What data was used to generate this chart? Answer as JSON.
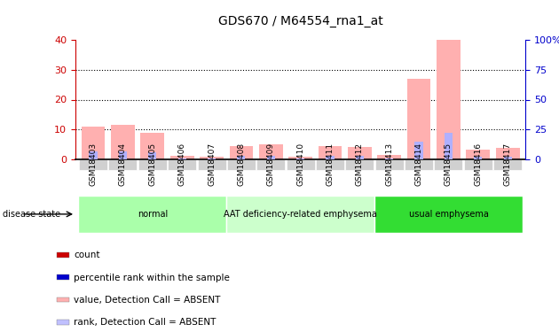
{
  "title": "GDS670 / M64554_rna1_at",
  "samples": [
    "GSM18403",
    "GSM18404",
    "GSM18405",
    "GSM18406",
    "GSM18407",
    "GSM18408",
    "GSM18409",
    "GSM18410",
    "GSM18411",
    "GSM18412",
    "GSM18413",
    "GSM18414",
    "GSM18415",
    "GSM18416",
    "GSM18417"
  ],
  "pink_bars": [
    11.0,
    11.5,
    8.8,
    1.1,
    0.8,
    4.5,
    5.0,
    1.0,
    4.5,
    4.2,
    1.5,
    27.0,
    40.0,
    3.2,
    4.0
  ],
  "blue_bars": [
    2.8,
    2.8,
    2.5,
    0.3,
    0.2,
    1.2,
    1.3,
    0.3,
    1.2,
    1.1,
    0.4,
    6.0,
    9.0,
    0.8,
    1.0
  ],
  "ylim_left": [
    0,
    40
  ],
  "ylim_right": [
    0,
    100
  ],
  "yticks_left": [
    0,
    10,
    20,
    30,
    40
  ],
  "yticks_right": [
    0,
    25,
    50,
    75,
    100
  ],
  "ytick_labels_right": [
    "0",
    "25",
    "50",
    "75",
    "100%"
  ],
  "groups": [
    {
      "label": "normal",
      "start": 0,
      "end": 5,
      "color": "#aaffaa"
    },
    {
      "label": "AAT deficiency-related emphysema",
      "start": 5,
      "end": 10,
      "color": "#ccffcc"
    },
    {
      "label": "usual emphysema",
      "start": 10,
      "end": 15,
      "color": "#33dd33"
    }
  ],
  "disease_state_label": "disease state",
  "legend_items": [
    {
      "color": "#cc0000",
      "label": "count"
    },
    {
      "color": "#0000cc",
      "label": "percentile rank within the sample"
    },
    {
      "color": "#ffb0b0",
      "label": "value, Detection Call = ABSENT"
    },
    {
      "color": "#c0c0ff",
      "label": "rank, Detection Call = ABSENT"
    }
  ],
  "pink_color": "#ffb0b0",
  "blue_color": "#b0b0ff",
  "left_tick_color": "#cc0000",
  "right_tick_color": "#0000cc",
  "bg_color": "#ffffff",
  "sample_bg_color": "#d0d0d0",
  "bar_width": 0.5
}
